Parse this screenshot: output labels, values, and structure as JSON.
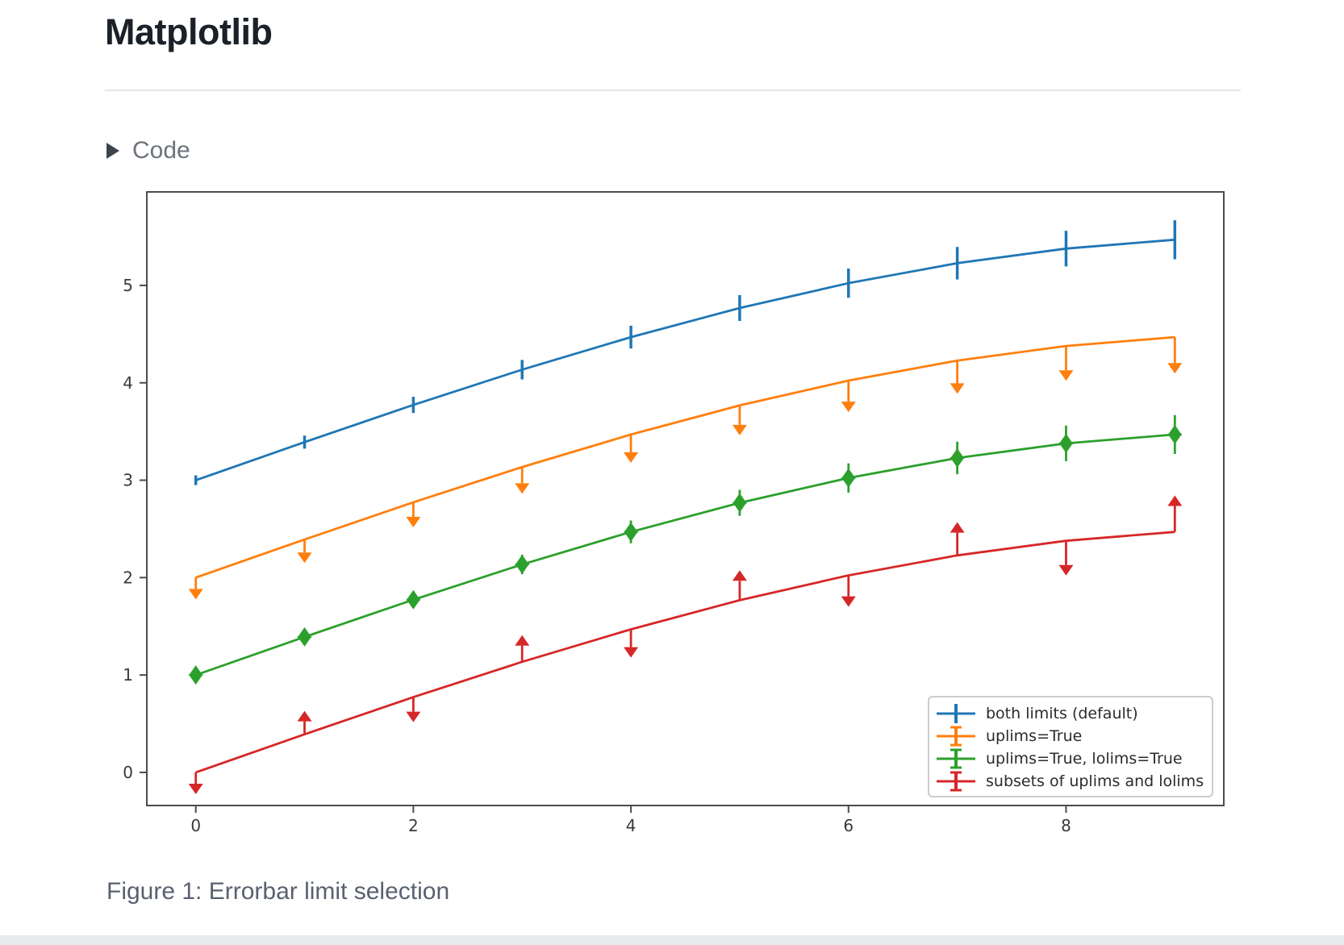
{
  "page": {
    "title": "Matplotlib",
    "code_toggle": {
      "label": "Code",
      "icon": "triangle-right-icon"
    },
    "caption": "Figure 1: Errorbar limit selection"
  },
  "chart_data": {
    "type": "line",
    "title": "",
    "xlabel": "",
    "ylabel": "",
    "grid": false,
    "x": [
      0,
      1,
      2,
      3,
      4,
      5,
      6,
      7,
      8,
      9
    ],
    "yerr": [
      0.05,
      0.067,
      0.083,
      0.1,
      0.117,
      0.133,
      0.15,
      0.167,
      0.183,
      0.2
    ],
    "series": [
      {
        "name": "both limits (default)",
        "color": "#1f77b4",
        "limits": "none",
        "values": [
          3.0,
          3.391,
          3.773,
          4.135,
          4.469,
          4.768,
          5.023,
          5.228,
          5.378,
          5.469
        ]
      },
      {
        "name": "uplims=True",
        "color": "#ff7f0e",
        "limits": "uplims",
        "values": [
          2.0,
          2.391,
          2.773,
          3.135,
          3.469,
          3.768,
          4.023,
          4.228,
          4.378,
          4.469
        ]
      },
      {
        "name": "uplims=True, lolims=True",
        "color": "#2ca02c",
        "limits": "both",
        "values": [
          1.0,
          1.391,
          1.773,
          2.135,
          2.469,
          2.768,
          3.023,
          3.228,
          3.378,
          3.469
        ]
      },
      {
        "name": "subsets of uplims and lolims",
        "color": "#d62728",
        "limits": "alternating",
        "uplims": [
          true,
          false,
          true,
          false,
          true,
          false,
          true,
          false,
          true,
          false
        ],
        "lolims": [
          false,
          true,
          false,
          true,
          false,
          true,
          false,
          true,
          false,
          true
        ],
        "values": [
          0.0,
          0.391,
          0.773,
          1.135,
          1.469,
          1.768,
          2.023,
          2.228,
          2.378,
          2.469
        ]
      }
    ],
    "xticks": [
      0,
      2,
      4,
      6,
      8
    ],
    "yticks": [
      0,
      1,
      2,
      3,
      4,
      5
    ],
    "xlim": [
      -0.45,
      9.45
    ],
    "ylim": [
      -0.34,
      5.96
    ],
    "legend": {
      "position": "lower right",
      "entries": [
        "both limits (default)",
        "uplims=True",
        "uplims=True, lolims=True",
        "subsets of uplims and lolims"
      ]
    }
  }
}
